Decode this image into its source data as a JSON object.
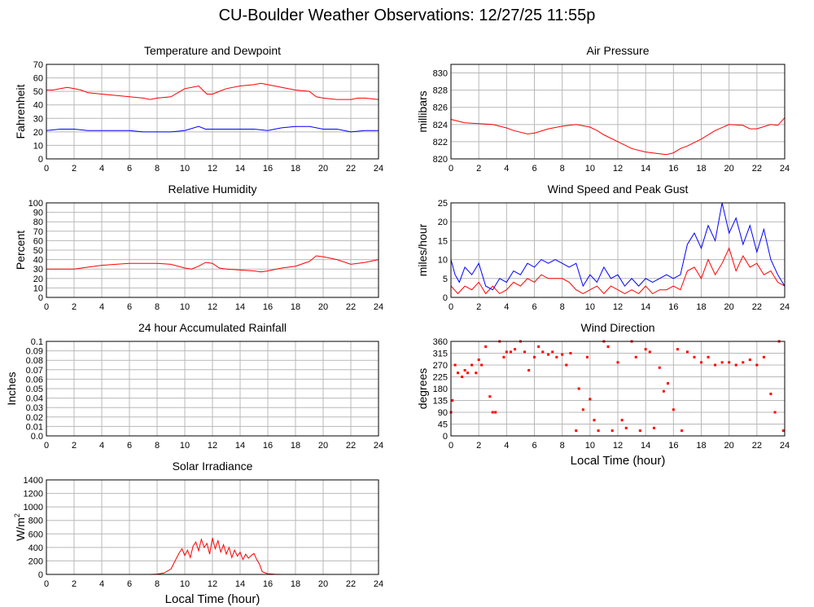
{
  "page_title": "CU-Boulder Weather Observations: 12/27/25 11:55p",
  "colors": {
    "series_red": "#ff0000",
    "series_blue": "#0000ff",
    "grid": "#b8b8b8",
    "frame": "#000000"
  },
  "chart_data": [
    {
      "id": "temperature",
      "type": "line",
      "title": "Temperature and Dewpoint",
      "ylabel": "Fahrenheit",
      "xlabel": "",
      "xlim": [
        0,
        24
      ],
      "ylim": [
        0,
        70
      ],
      "xticks": [
        0,
        2,
        4,
        6,
        8,
        10,
        12,
        14,
        16,
        18,
        20,
        22,
        24
      ],
      "yticks": [
        0,
        10,
        20,
        30,
        40,
        50,
        60,
        70
      ],
      "grid": true,
      "series": [
        {
          "color": "#ff0000",
          "x": [
            0,
            0.5,
            1,
            1.5,
            2,
            2.5,
            3,
            4,
            5,
            6,
            7,
            7.5,
            8,
            9,
            9.5,
            10,
            10.5,
            11,
            11.3,
            11.6,
            12,
            12.5,
            13,
            14,
            15,
            15.5,
            16,
            17,
            18,
            19,
            19.5,
            20,
            21,
            22,
            22.5,
            23,
            24
          ],
          "y": [
            51,
            51,
            52,
            53,
            52,
            51,
            49,
            48,
            47,
            46,
            45,
            44,
            45,
            46,
            49,
            52,
            53,
            54,
            51,
            48,
            48,
            50,
            52,
            54,
            55,
            56,
            55,
            53,
            51,
            50,
            46,
            45,
            44,
            44,
            45,
            45,
            44
          ]
        },
        {
          "color": "#0000ff",
          "x": [
            0,
            1,
            2,
            3,
            4,
            5,
            6,
            7,
            8,
            9,
            10,
            11,
            11.5,
            12,
            13,
            14,
            15,
            16,
            16.5,
            17,
            18,
            19,
            20,
            21,
            22,
            23,
            24
          ],
          "y": [
            21,
            22,
            22,
            21,
            21,
            21,
            21,
            20,
            20,
            20,
            21,
            24,
            22,
            22,
            22,
            22,
            22,
            21,
            22,
            23,
            24,
            24,
            22,
            22,
            20,
            21,
            21
          ]
        }
      ]
    },
    {
      "id": "pressure",
      "type": "line",
      "title": "Air Pressure",
      "ylabel": "millibars",
      "xlabel": "",
      "xlim": [
        0,
        24
      ],
      "ylim": [
        820,
        831
      ],
      "xticks": [
        0,
        2,
        4,
        6,
        8,
        10,
        12,
        14,
        16,
        18,
        20,
        22,
        24
      ],
      "yticks": [
        820,
        822,
        824,
        826,
        828,
        830
      ],
      "grid": true,
      "series": [
        {
          "color": "#ff0000",
          "x": [
            0,
            0.5,
            1,
            2,
            3,
            4,
            4.5,
            5,
            5.5,
            6,
            7,
            8,
            9,
            10,
            10.5,
            11,
            12,
            12.5,
            13,
            14,
            15,
            15.5,
            16,
            16.5,
            17,
            18,
            19,
            20,
            21,
            21.5,
            22,
            23,
            23.5,
            24
          ],
          "y": [
            824.6,
            824.4,
            824.2,
            824.1,
            824.0,
            823.6,
            823.3,
            823.1,
            822.9,
            823.0,
            823.5,
            823.8,
            824.0,
            823.7,
            823.3,
            822.8,
            822.0,
            821.6,
            821.2,
            820.8,
            820.6,
            820.5,
            820.7,
            821.2,
            821.5,
            822.3,
            823.3,
            824.0,
            823.9,
            823.5,
            823.5,
            824.0,
            823.9,
            824.8
          ]
        }
      ]
    },
    {
      "id": "humidity",
      "type": "line",
      "title": "Relative Humidity",
      "ylabel": "Percent",
      "xlabel": "",
      "xlim": [
        0,
        24
      ],
      "ylim": [
        0,
        100
      ],
      "xticks": [
        0,
        2,
        4,
        6,
        8,
        10,
        12,
        14,
        16,
        18,
        20,
        22,
        24
      ],
      "yticks": [
        0,
        10,
        20,
        30,
        40,
        50,
        60,
        70,
        80,
        90,
        100
      ],
      "grid": true,
      "series": [
        {
          "color": "#ff0000",
          "x": [
            0,
            1,
            2,
            3,
            4,
            5,
            6,
            7,
            8,
            9,
            10,
            10.5,
            11,
            11.5,
            12,
            12.5,
            13,
            14,
            15,
            15.5,
            16,
            17,
            18,
            19,
            19.5,
            20,
            21,
            22,
            23,
            24
          ],
          "y": [
            30,
            30,
            30,
            32,
            34,
            35,
            36,
            36,
            36,
            35,
            31,
            30,
            33,
            37,
            36,
            31,
            30,
            29,
            28,
            27,
            28,
            31,
            33,
            38,
            44,
            43,
            40,
            35,
            37,
            40
          ]
        }
      ]
    },
    {
      "id": "wind_speed",
      "type": "line",
      "title": "Wind Speed and Peak Gust",
      "ylabel": "miles/hour",
      "xlabel": "",
      "xlim": [
        0,
        24
      ],
      "ylim": [
        0,
        25
      ],
      "xticks": [
        0,
        2,
        4,
        6,
        8,
        10,
        12,
        14,
        16,
        18,
        20,
        22,
        24
      ],
      "yticks": [
        0,
        5,
        10,
        15,
        20,
        25
      ],
      "grid": true,
      "series": [
        {
          "color": "#ff0000",
          "x": [
            0,
            0.5,
            1,
            1.5,
            2,
            2.5,
            3,
            3.5,
            4,
            4.5,
            5,
            5.5,
            6,
            6.5,
            7,
            7.5,
            8,
            8.5,
            9,
            9.5,
            10,
            10.5,
            11,
            11.5,
            12,
            12.5,
            13,
            13.5,
            14,
            14.5,
            15,
            15.5,
            16,
            16.5,
            17,
            17.5,
            18,
            18.5,
            19,
            19.5,
            20,
            20.5,
            21,
            21.5,
            22,
            22.5,
            23,
            23.5,
            24
          ],
          "y": [
            3,
            1,
            3,
            2,
            4,
            1,
            3,
            1,
            2,
            4,
            3,
            5,
            4,
            6,
            5,
            5,
            5,
            4,
            2,
            1,
            2,
            3,
            1,
            3,
            2,
            1,
            2,
            1,
            3,
            1,
            2,
            2,
            3,
            2,
            7,
            8,
            5,
            10,
            6,
            9,
            13,
            7,
            11,
            8,
            9,
            6,
            7,
            4,
            3
          ]
        },
        {
          "color": "#0000ff",
          "x": [
            0,
            0.3,
            0.6,
            1,
            1.5,
            2,
            2.5,
            3,
            3.5,
            4,
            4.5,
            5,
            5.5,
            6,
            6.5,
            7,
            7.5,
            8,
            8.5,
            9,
            9.5,
            10,
            10.5,
            11,
            11.5,
            12,
            12.5,
            13,
            13.5,
            14,
            14.5,
            15,
            15.5,
            16,
            16.5,
            17,
            17.5,
            18,
            18.5,
            19,
            19.5,
            20,
            20.5,
            21,
            21.5,
            22,
            22.5,
            23,
            23.5,
            24
          ],
          "y": [
            10,
            6,
            4,
            8,
            6,
            9,
            3,
            2,
            5,
            4,
            7,
            6,
            9,
            8,
            10,
            9,
            10,
            9,
            8,
            9,
            3,
            6,
            4,
            8,
            5,
            6,
            3,
            5,
            3,
            5,
            4,
            5,
            6,
            5,
            6,
            14,
            17,
            13,
            19,
            15,
            25,
            17,
            21,
            14,
            19,
            12,
            18,
            10,
            6,
            3
          ]
        }
      ]
    },
    {
      "id": "rainfall",
      "type": "line",
      "title": "24 hour Accumulated Rainfall",
      "ylabel": "Inches",
      "xlabel": "",
      "xlim": [
        0,
        24
      ],
      "ylim": [
        0,
        0.1
      ],
      "xticks": [
        0,
        2,
        4,
        6,
        8,
        10,
        12,
        14,
        16,
        18,
        20,
        22,
        24
      ],
      "yticks": [
        0,
        0.01,
        0.02,
        0.03,
        0.04,
        0.05,
        0.06,
        0.07,
        0.08,
        0.09,
        0.1
      ],
      "yticklabels": [
        "0.0",
        "0.01",
        "0.02",
        "0.03",
        "0.04",
        "0.05",
        "0.06",
        "0.07",
        "0.08",
        "0.09",
        "0.1"
      ],
      "grid": true,
      "series": [
        {
          "color": "#ff0000",
          "x": [
            0,
            24
          ],
          "y": [
            0,
            0
          ]
        }
      ]
    },
    {
      "id": "wind_direction",
      "type": "scatter",
      "title": "Wind Direction",
      "ylabel": "degrees",
      "xlabel": "Local Time (hour)",
      "xlim": [
        0,
        24
      ],
      "ylim": [
        0,
        360
      ],
      "xticks": [
        0,
        2,
        4,
        6,
        8,
        10,
        12,
        14,
        16,
        18,
        20,
        22,
        24
      ],
      "yticks": [
        0,
        45,
        90,
        135,
        180,
        225,
        270,
        315,
        360
      ],
      "grid": true,
      "series": [
        {
          "color": "#ff0000",
          "x": [
            0,
            0.1,
            0.3,
            0.5,
            0.8,
            1,
            1.2,
            1.5,
            1.8,
            2.0,
            2.2,
            2.5,
            2.8,
            3.0,
            3.2,
            3.5,
            3.8,
            4.0,
            4.3,
            4.6,
            5.0,
            5.3,
            5.6,
            6.0,
            6.3,
            6.6,
            7.0,
            7.3,
            7.6,
            8.0,
            8.3,
            8.6,
            9.0,
            9.2,
            9.5,
            9.8,
            10.0,
            10.3,
            10.6,
            11.0,
            11.3,
            11.6,
            12.0,
            12.3,
            12.6,
            13.0,
            13.3,
            13.6,
            14.0,
            14.3,
            14.6,
            15.0,
            15.3,
            15.6,
            16.0,
            16.3,
            16.6,
            17.0,
            17.5,
            18.0,
            18.5,
            19.0,
            19.5,
            20.0,
            20.5,
            21.0,
            21.5,
            22.0,
            22.5,
            23.0,
            23.3,
            23.6,
            23.9
          ],
          "y": [
            90,
            135,
            270,
            240,
            225,
            250,
            240,
            270,
            240,
            290,
            270,
            340,
            150,
            90,
            90,
            360,
            300,
            320,
            320,
            330,
            360,
            320,
            250,
            300,
            340,
            320,
            310,
            320,
            300,
            310,
            270,
            315,
            20,
            180,
            100,
            300,
            140,
            60,
            20,
            360,
            340,
            20,
            280,
            60,
            30,
            360,
            300,
            20,
            330,
            320,
            30,
            260,
            170,
            200,
            100,
            330,
            20,
            320,
            300,
            280,
            300,
            270,
            280,
            280,
            270,
            280,
            290,
            270,
            300,
            160,
            90,
            360,
            20
          ]
        }
      ]
    },
    {
      "id": "solar",
      "type": "line",
      "title": "Solar Irradiance",
      "ylabel": "W/m",
      "ylabel_sup": "2",
      "xlabel": "Local Time (hour)",
      "xlim": [
        0,
        24
      ],
      "ylim": [
        0,
        1400
      ],
      "xticks": [
        0,
        2,
        4,
        6,
        8,
        10,
        12,
        14,
        16,
        18,
        20,
        22,
        24
      ],
      "yticks": [
        0,
        200,
        400,
        600,
        800,
        1000,
        1200,
        1400
      ],
      "grid": true,
      "series": [
        {
          "color": "#ff0000",
          "x": [
            0,
            7.5,
            8,
            8.5,
            9,
            9.3,
            9.6,
            9.8,
            10,
            10.2,
            10.4,
            10.6,
            10.8,
            11,
            11.2,
            11.4,
            11.6,
            11.8,
            12,
            12.2,
            12.4,
            12.6,
            12.8,
            13,
            13.2,
            13.4,
            13.6,
            13.8,
            14,
            14.2,
            14.4,
            14.6,
            14.8,
            15,
            15.2,
            15.4,
            15.6,
            16,
            16.5,
            17,
            24
          ],
          "y": [
            0,
            0,
            5,
            20,
            80,
            200,
            320,
            380,
            280,
            360,
            250,
            420,
            480,
            350,
            520,
            400,
            460,
            300,
            540,
            380,
            500,
            330,
            440,
            300,
            400,
            250,
            360,
            270,
            330,
            220,
            300,
            240,
            280,
            310,
            220,
            150,
            40,
            10,
            3,
            0,
            0
          ]
        }
      ]
    }
  ]
}
